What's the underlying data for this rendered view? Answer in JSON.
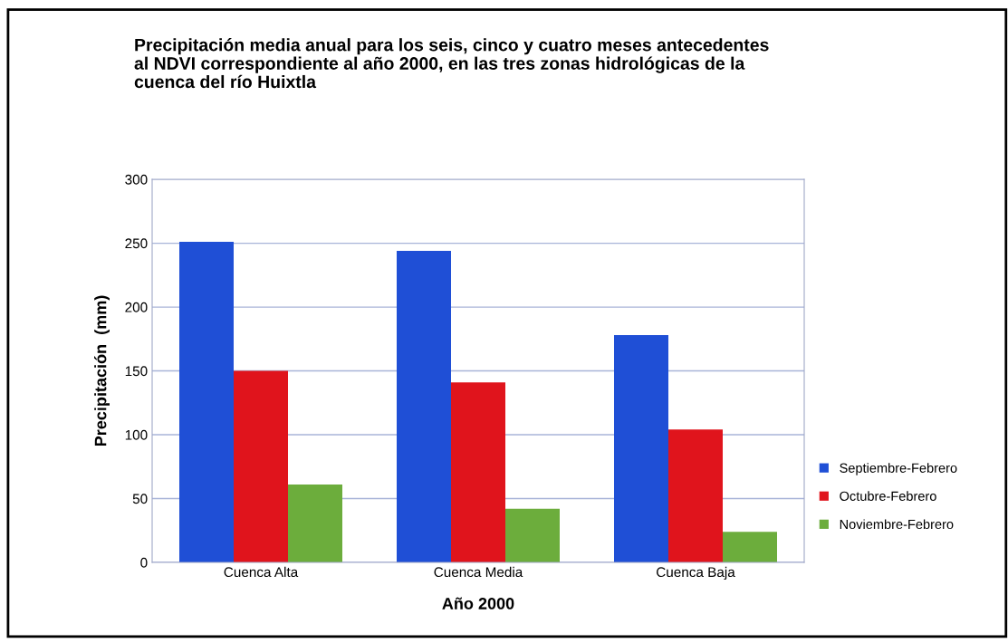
{
  "chart_data": {
    "type": "bar",
    "title": "Precipitación media anual para los seis, cinco y cuatro meses antecedentes\nal NDVI correspondiente al año 2000, en las tres zonas hidrológicas de la\ncuenca del río Huixtla",
    "xlabel": "Año 2000",
    "ylabel": "Precipitación  (mm)",
    "categories": [
      "Cuenca Alta",
      "Cuenca Media",
      "Cuenca Baja"
    ],
    "series": [
      {
        "name": "Septiembre-Febrero",
        "color": "#1f4fd6",
        "values": [
          251,
          244,
          178
        ]
      },
      {
        "name": "Octubre-Febrero",
        "color": "#e0141c",
        "values": [
          150,
          141,
          104
        ]
      },
      {
        "name": "Noviembre-Febrero",
        "color": "#6cad3c",
        "values": [
          61,
          42,
          24
        ]
      }
    ],
    "ylim": [
      0,
      300
    ],
    "yticks": [
      0,
      50,
      100,
      150,
      200,
      250,
      300
    ],
    "grid": "y",
    "legend": "right"
  }
}
